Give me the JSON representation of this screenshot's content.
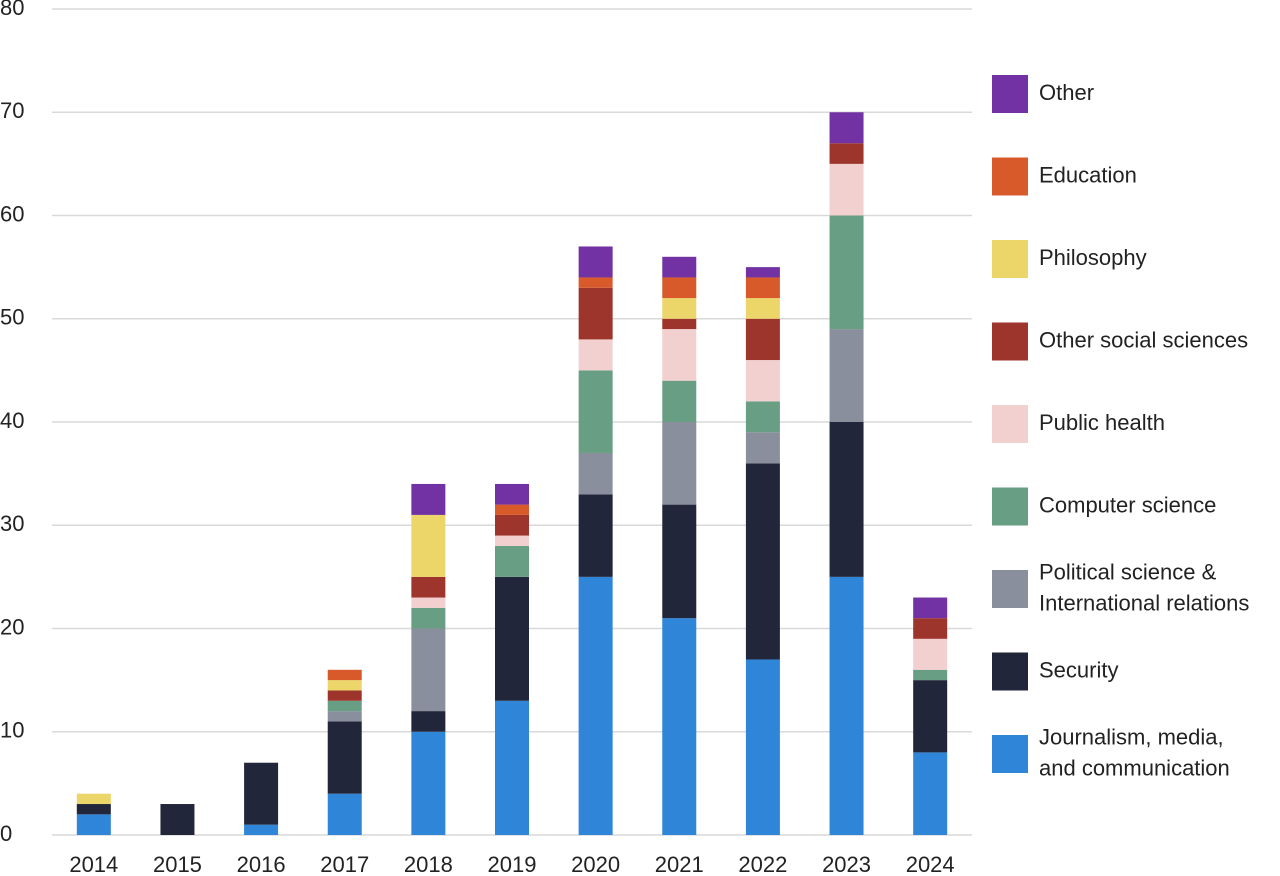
{
  "chart_data": {
    "type": "stacked-bar",
    "categories": [
      "2014",
      "2015",
      "2016",
      "2017",
      "2018",
      "2019",
      "2020",
      "2021",
      "2022",
      "2023",
      "2024"
    ],
    "series": [
      {
        "name": "Journalism, media,\nand communication",
        "color": "#2f86d9",
        "values": [
          2,
          0,
          1,
          4,
          10,
          13,
          25,
          21,
          17,
          25,
          8
        ]
      },
      {
        "name": "Security",
        "color": "#22263a",
        "values": [
          1,
          3,
          6,
          7,
          2,
          12,
          8,
          11,
          19,
          15,
          7
        ]
      },
      {
        "name": "Political science &\nInternational relations",
        "color": "#8a8f9e",
        "values": [
          0,
          0,
          0,
          1,
          8,
          0,
          4,
          8,
          3,
          9,
          0
        ]
      },
      {
        "name": "Computer science",
        "color": "#689f84",
        "values": [
          0,
          0,
          0,
          1,
          2,
          3,
          8,
          4,
          3,
          11,
          1
        ]
      },
      {
        "name": "Public health",
        "color": "#f1d0cf",
        "values": [
          0,
          0,
          0,
          0,
          1,
          1,
          3,
          5,
          4,
          5,
          3
        ]
      },
      {
        "name": "Other social sciences",
        "color": "#9e352d",
        "values": [
          0,
          0,
          0,
          1,
          2,
          2,
          5,
          1,
          4,
          2,
          2
        ]
      },
      {
        "name": "Philosophy",
        "color": "#ecd66a",
        "values": [
          1,
          0,
          0,
          1,
          6,
          0,
          0,
          2,
          2,
          0,
          0
        ]
      },
      {
        "name": "Education",
        "color": "#d85a2b",
        "values": [
          0,
          0,
          0,
          1,
          0,
          1,
          1,
          2,
          2,
          0,
          0
        ]
      },
      {
        "name": "Other",
        "color": "#7232a3",
        "values": [
          0,
          0,
          0,
          0,
          3,
          2,
          3,
          2,
          1,
          3,
          2
        ]
      }
    ],
    "ylim": [
      0,
      80
    ],
    "yticks": [
      0,
      10,
      20,
      30,
      40,
      50,
      60,
      70,
      80
    ],
    "grid": true,
    "legend": "right"
  }
}
